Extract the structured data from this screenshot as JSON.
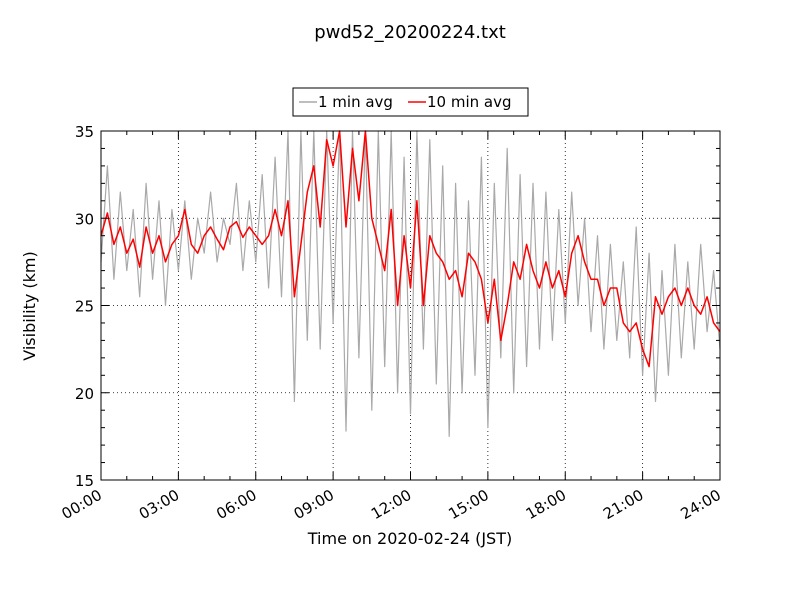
{
  "chart_data": {
    "type": "line",
    "title": "pwd52_20200224.txt",
    "xlabel": "Time on 2020-02-24 (JST)",
    "ylabel": "Visibility (km)",
    "xlim": [
      0,
      24
    ],
    "ylim": [
      15,
      35
    ],
    "x_ticks": [
      "00:00",
      "03:00",
      "06:00",
      "09:00",
      "12:00",
      "15:00",
      "18:00",
      "21:00",
      "24:00"
    ],
    "y_ticks": [
      "15",
      "20",
      "25",
      "30",
      "35"
    ],
    "grid": true,
    "legend_position": "top-center",
    "series": [
      {
        "name": "1 min avg",
        "color": "#a9a9a9",
        "x": [
          0,
          0.25,
          0.5,
          0.75,
          1,
          1.25,
          1.5,
          1.75,
          2,
          2.25,
          2.5,
          2.75,
          3,
          3.25,
          3.5,
          3.75,
          4,
          4.25,
          4.5,
          4.75,
          5,
          5.25,
          5.5,
          5.75,
          6,
          6.25,
          6.5,
          6.75,
          7,
          7.25,
          7.5,
          7.75,
          8,
          8.25,
          8.5,
          8.75,
          9,
          9.25,
          9.5,
          9.75,
          10,
          10.25,
          10.5,
          10.75,
          11,
          11.25,
          11.5,
          11.75,
          12,
          12.25,
          12.5,
          12.75,
          13,
          13.25,
          13.5,
          13.75,
          14,
          14.25,
          14.5,
          14.75,
          15,
          15.25,
          15.5,
          15.75,
          16,
          16.25,
          16.5,
          16.75,
          17,
          17.25,
          17.5,
          17.75,
          18,
          18.25,
          18.5,
          18.75,
          19,
          19.25,
          19.5,
          19.75,
          20,
          20.25,
          20.5,
          20.75,
          21,
          21.25,
          21.5,
          21.75,
          22,
          22.25,
          22.5,
          22.75,
          23,
          23.25,
          23.5,
          23.75,
          24
        ],
        "values": [
          27.5,
          33.0,
          26.5,
          31.5,
          27.0,
          30.5,
          25.5,
          32.0,
          26.5,
          31.0,
          25.0,
          30.5,
          27.0,
          31.0,
          26.5,
          30.0,
          28.0,
          31.5,
          27.5,
          30.0,
          28.5,
          32.0,
          27.0,
          31.0,
          27.5,
          32.5,
          26.0,
          33.5,
          25.5,
          35.0,
          19.5,
          35.0,
          23.0,
          35.0,
          22.5,
          35.0,
          24.0,
          35.0,
          17.8,
          35.0,
          22.0,
          35.0,
          19.0,
          35.0,
          21.5,
          35.0,
          20.0,
          33.5,
          18.8,
          35.0,
          22.5,
          34.5,
          20.5,
          33.0,
          17.5,
          32.0,
          20.0,
          31.0,
          21.0,
          33.5,
          18.0,
          32.0,
          22.0,
          34.0,
          20.0,
          32.5,
          21.5,
          32.0,
          22.5,
          31.5,
          23.0,
          30.5,
          24.0,
          31.5,
          25.0,
          30.0,
          23.5,
          29.0,
          22.5,
          28.5,
          23.0,
          27.5,
          22.0,
          29.5,
          21.0,
          28.0,
          19.5,
          27.0,
          21.0,
          28.5,
          22.0,
          27.5,
          22.5,
          28.5,
          23.5,
          27.0,
          22.5
        ]
      },
      {
        "name": "10 min avg",
        "color": "#ff0000",
        "x": [
          0,
          0.25,
          0.5,
          0.75,
          1,
          1.25,
          1.5,
          1.75,
          2,
          2.25,
          2.5,
          2.75,
          3,
          3.25,
          3.5,
          3.75,
          4,
          4.25,
          4.5,
          4.75,
          5,
          5.25,
          5.5,
          5.75,
          6,
          6.25,
          6.5,
          6.75,
          7,
          7.25,
          7.5,
          7.75,
          8,
          8.25,
          8.5,
          8.75,
          9,
          9.25,
          9.5,
          9.75,
          10,
          10.25,
          10.5,
          10.75,
          11,
          11.25,
          11.5,
          11.75,
          12,
          12.25,
          12.5,
          12.75,
          13,
          13.25,
          13.5,
          13.75,
          14,
          14.25,
          14.5,
          14.75,
          15,
          15.25,
          15.5,
          15.75,
          16,
          16.25,
          16.5,
          16.75,
          17,
          17.25,
          17.5,
          17.75,
          18,
          18.25,
          18.5,
          18.75,
          19,
          19.25,
          19.5,
          19.75,
          20,
          20.25,
          20.5,
          20.75,
          21,
          21.25,
          21.5,
          21.75,
          22,
          22.25,
          22.5,
          22.75,
          23,
          23.25,
          23.5,
          23.75,
          24
        ],
        "values": [
          29.0,
          30.3,
          28.5,
          29.5,
          28.0,
          28.8,
          27.2,
          29.5,
          28.0,
          29.0,
          27.5,
          28.5,
          29.0,
          30.5,
          28.5,
          28.0,
          29.0,
          29.5,
          28.8,
          28.2,
          29.5,
          29.8,
          28.9,
          29.5,
          29.0,
          28.5,
          29.0,
          30.5,
          29.0,
          31.0,
          25.5,
          28.5,
          31.5,
          33.0,
          29.5,
          34.5,
          33.0,
          35.0,
          29.5,
          34.0,
          31.0,
          35.0,
          30.0,
          28.5,
          27.0,
          30.5,
          25.0,
          29.0,
          26.0,
          31.0,
          25.0,
          29.0,
          28.0,
          27.5,
          26.5,
          27.0,
          25.5,
          28.0,
          27.5,
          26.5,
          24.0,
          26.5,
          23.0,
          25.0,
          27.5,
          26.5,
          28.5,
          27.0,
          26.0,
          27.5,
          26.0,
          27.0,
          25.5,
          28.0,
          29.0,
          27.5,
          26.5,
          26.5,
          25.0,
          26.0,
          26.0,
          24.0,
          23.5,
          24.0,
          22.5,
          21.5,
          25.5,
          24.5,
          25.5,
          26.0,
          25.0,
          26.0,
          25.0,
          24.5,
          25.5,
          24.0,
          23.5
        ]
      }
    ]
  }
}
